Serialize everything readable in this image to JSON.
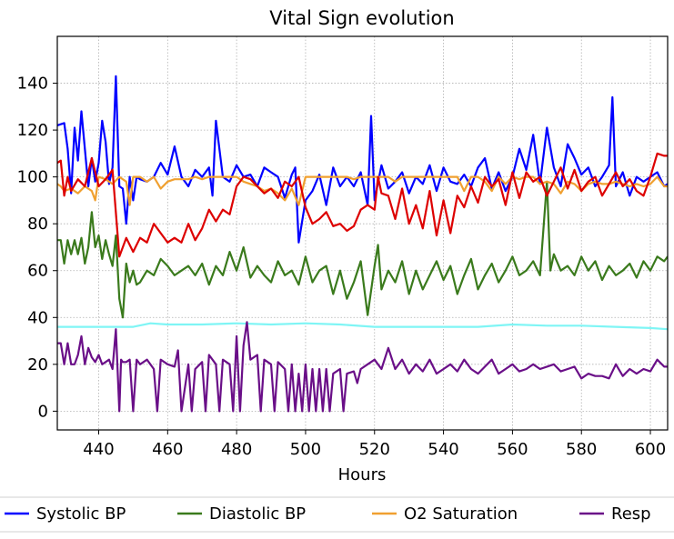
{
  "chart_data": {
    "type": "line",
    "title": "Vital Sign evolution",
    "xlabel": "Hours",
    "ylabel": "",
    "xlim": [
      428,
      605
    ],
    "ylim": [
      -8,
      160
    ],
    "xticks": [
      440,
      460,
      480,
      500,
      520,
      540,
      560,
      580,
      600
    ],
    "yticks": [
      0,
      20,
      40,
      60,
      80,
      100,
      120,
      140
    ],
    "grid": true,
    "legend": {
      "position": "bottom",
      "visible_entries": [
        "Systolic BP",
        "Diastolic BP",
        "O2 Saturation",
        "Resp"
      ]
    },
    "series": [
      {
        "name": "Systolic BP",
        "color": "#0000ff",
        "x": [
          428,
          430,
          431,
          432,
          433,
          434,
          435,
          436,
          437,
          438,
          439,
          440,
          441,
          442,
          443,
          444,
          445,
          446,
          447,
          448,
          449,
          450,
          451,
          452,
          454,
          456,
          458,
          460,
          462,
          464,
          466,
          468,
          470,
          472,
          473,
          474,
          476,
          478,
          480,
          482,
          484,
          486,
          488,
          490,
          492,
          494,
          496,
          497,
          498,
          500,
          502,
          504,
          506,
          508,
          510,
          512,
          514,
          516,
          518,
          519,
          520,
          522,
          524,
          526,
          528,
          530,
          532,
          534,
          536,
          538,
          540,
          542,
          544,
          546,
          548,
          550,
          552,
          554,
          556,
          558,
          560,
          562,
          564,
          566,
          568,
          570,
          572,
          574,
          576,
          578,
          580,
          582,
          584,
          586,
          588,
          589,
          590,
          592,
          594,
          596,
          598,
          600,
          602,
          604,
          605
        ],
        "y": [
          122,
          123,
          112,
          93,
          121,
          107,
          128,
          112,
          96,
          108,
          98,
          106,
          124,
          115,
          97,
          104,
          143,
          96,
          95,
          80,
          100,
          90,
          100,
          99,
          98,
          100,
          106,
          101,
          113,
          100,
          96,
          103,
          100,
          104,
          92,
          124,
          100,
          98,
          105,
          100,
          101,
          96,
          104,
          102,
          100,
          91,
          101,
          104,
          72,
          90,
          94,
          101,
          88,
          104,
          96,
          100,
          96,
          102,
          88,
          126,
          90,
          105,
          95,
          98,
          102,
          93,
          100,
          97,
          105,
          94,
          104,
          98,
          97,
          101,
          96,
          104,
          108,
          95,
          102,
          94,
          100,
          112,
          103,
          118,
          97,
          121,
          104,
          96,
          114,
          108,
          101,
          104,
          96,
          100,
          105,
          134,
          96,
          102,
          92,
          100,
          98,
          100,
          102,
          96,
          97
        ]
      },
      {
        "name": "Diastolic BP",
        "color": "#3a7a1c",
        "x": [
          428,
          429,
          430,
          431,
          432,
          433,
          434,
          435,
          436,
          437,
          438,
          439,
          440,
          441,
          442,
          443,
          444,
          445,
          446,
          447,
          448,
          449,
          450,
          451,
          452,
          454,
          456,
          458,
          460,
          462,
          464,
          466,
          468,
          470,
          472,
          474,
          476,
          478,
          480,
          482,
          484,
          486,
          488,
          490,
          492,
          494,
          496,
          498,
          500,
          502,
          504,
          506,
          508,
          510,
          512,
          514,
          516,
          518,
          520,
          521,
          522,
          524,
          526,
          528,
          530,
          532,
          534,
          536,
          538,
          540,
          542,
          544,
          546,
          548,
          550,
          552,
          554,
          556,
          558,
          560,
          562,
          564,
          566,
          568,
          570,
          571,
          572,
          574,
          576,
          578,
          580,
          582,
          584,
          586,
          588,
          590,
          592,
          594,
          596,
          598,
          600,
          602,
          604,
          605
        ],
        "y": [
          73,
          73,
          63,
          73,
          67,
          73,
          67,
          74,
          63,
          70,
          85,
          70,
          75,
          65,
          73,
          67,
          62,
          75,
          48,
          40,
          63,
          55,
          60,
          54,
          55,
          60,
          58,
          65,
          62,
          58,
          60,
          62,
          58,
          63,
          54,
          62,
          58,
          68,
          60,
          70,
          57,
          62,
          58,
          55,
          64,
          58,
          60,
          54,
          66,
          55,
          60,
          62,
          50,
          60,
          48,
          55,
          64,
          41,
          62,
          71,
          52,
          60,
          55,
          64,
          50,
          60,
          52,
          58,
          64,
          56,
          62,
          50,
          58,
          65,
          52,
          58,
          63,
          55,
          60,
          66,
          58,
          60,
          64,
          58,
          98,
          60,
          67,
          60,
          62,
          58,
          66,
          60,
          64,
          56,
          62,
          58,
          60,
          63,
          57,
          64,
          60,
          66,
          64,
          66
        ]
      },
      {
        "name": "O2 Saturation",
        "color": "#f0a030",
        "x": [
          428,
          429,
          430,
          432,
          434,
          436,
          438,
          439,
          440,
          442,
          444,
          446,
          448,
          449,
          450,
          452,
          454,
          456,
          458,
          460,
          462,
          464,
          466,
          468,
          470,
          472,
          474,
          476,
          478,
          480,
          482,
          484,
          486,
          488,
          490,
          492,
          494,
          496,
          498,
          500,
          502,
          504,
          506,
          508,
          510,
          512,
          514,
          516,
          518,
          520,
          522,
          524,
          526,
          528,
          530,
          532,
          534,
          536,
          538,
          540,
          542,
          544,
          546,
          548,
          550,
          552,
          554,
          556,
          558,
          560,
          562,
          564,
          566,
          568,
          570,
          572,
          574,
          576,
          578,
          580,
          582,
          584,
          586,
          588,
          590,
          592,
          594,
          596,
          598,
          600,
          602,
          604,
          605
        ],
        "y": [
          97,
          96,
          94,
          95,
          93,
          96,
          94,
          90,
          100,
          99,
          97,
          100,
          98,
          88,
          100,
          100,
          98,
          100,
          95,
          98,
          99,
          99,
          99,
          100,
          99,
          100,
          100,
          100,
          100,
          100,
          98,
          97,
          96,
          94,
          95,
          93,
          90,
          95,
          88,
          100,
          100,
          100,
          100,
          100,
          100,
          100,
          99,
          100,
          100,
          100,
          100,
          100,
          98,
          100,
          100,
          100,
          100,
          100,
          100,
          100,
          100,
          100,
          94,
          100,
          100,
          98,
          94,
          100,
          97,
          100,
          99,
          100,
          100,
          97,
          98,
          97,
          93,
          98,
          97,
          94,
          97,
          98,
          97,
          97,
          98,
          97,
          96,
          97,
          96,
          97,
          100,
          96,
          96
        ]
      },
      {
        "name": "",
        "color": "#dd0000",
        "x": [
          428,
          429,
          430,
          431,
          432,
          434,
          436,
          438,
          440,
          442,
          444,
          446,
          448,
          450,
          452,
          454,
          456,
          458,
          460,
          462,
          464,
          466,
          468,
          470,
          472,
          474,
          476,
          478,
          480,
          482,
          484,
          486,
          488,
          490,
          492,
          494,
          496,
          498,
          500,
          502,
          504,
          506,
          508,
          510,
          512,
          514,
          516,
          518,
          520,
          521,
          522,
          524,
          526,
          528,
          530,
          532,
          534,
          536,
          538,
          540,
          542,
          544,
          546,
          548,
          550,
          552,
          554,
          556,
          558,
          560,
          562,
          564,
          566,
          568,
          570,
          572,
          574,
          576,
          578,
          580,
          582,
          584,
          586,
          588,
          590,
          592,
          594,
          596,
          598,
          600,
          602,
          604,
          605
        ],
        "y": [
          106,
          107,
          92,
          100,
          94,
          99,
          96,
          108,
          96,
          99,
          103,
          66,
          74,
          68,
          74,
          72,
          80,
          76,
          72,
          74,
          72,
          80,
          73,
          78,
          86,
          81,
          86,
          84,
          96,
          100,
          99,
          96,
          93,
          95,
          91,
          98,
          96,
          100,
          87,
          80,
          82,
          85,
          79,
          80,
          77,
          79,
          86,
          88,
          86,
          100,
          93,
          92,
          82,
          95,
          80,
          88,
          78,
          94,
          75,
          90,
          76,
          92,
          87,
          96,
          89,
          100,
          96,
          99,
          88,
          102,
          91,
          102,
          98,
          100,
          92,
          98,
          104,
          95,
          103,
          94,
          98,
          100,
          92,
          97,
          102,
          96,
          99,
          94,
          92,
          100,
          110,
          109,
          109
        ]
      },
      {
        "name": "",
        "color": "#7ff5f5",
        "x": [
          428,
          440,
          450,
          455,
          460,
          470,
          480,
          490,
          500,
          510,
          520,
          530,
          540,
          550,
          560,
          570,
          580,
          590,
          600,
          605
        ],
        "y": [
          36,
          36,
          36,
          37.5,
          37,
          37,
          37.5,
          37,
          37.5,
          37,
          36,
          36,
          36,
          36,
          37,
          36.5,
          36.5,
          36,
          35.5,
          35
        ]
      },
      {
        "name": "Resp",
        "color": "#6a0f88",
        "x": [
          428,
          429,
          430,
          431,
          432,
          433,
          434,
          435,
          436,
          437,
          438,
          439,
          440,
          441,
          442,
          443,
          444,
          445,
          446,
          446.5,
          447,
          448,
          449,
          450,
          451,
          452,
          454,
          456,
          457,
          458,
          460,
          462,
          463,
          464,
          466,
          467,
          468,
          470,
          471,
          472,
          474,
          475,
          476,
          478,
          479,
          480,
          481,
          482,
          483,
          484,
          486,
          487,
          488,
          490,
          491,
          492,
          494,
          495,
          496,
          497,
          498,
          499,
          500,
          501,
          502,
          503,
          504,
          505,
          506,
          507,
          508,
          510,
          511,
          512,
          514,
          515,
          516,
          518,
          520,
          522,
          524,
          526,
          528,
          530,
          532,
          534,
          536,
          538,
          540,
          542,
          544,
          546,
          548,
          550,
          552,
          554,
          556,
          558,
          560,
          562,
          564,
          566,
          568,
          570,
          572,
          574,
          576,
          578,
          580,
          582,
          584,
          586,
          588,
          590,
          592,
          594,
          596,
          598,
          600,
          602,
          604,
          605
        ],
        "y": [
          29,
          29,
          20,
          29,
          20,
          20,
          24,
          32,
          20,
          27,
          23,
          21,
          24,
          20,
          21,
          22,
          18,
          35,
          0,
          22,
          21,
          21,
          22,
          0,
          22,
          20,
          22,
          18,
          0,
          22,
          20,
          19,
          26,
          0,
          20,
          0,
          18,
          21,
          0,
          24,
          20,
          0,
          22,
          20,
          0,
          32,
          0,
          28,
          38,
          22,
          24,
          0,
          22,
          20,
          0,
          21,
          18,
          0,
          20,
          0,
          16,
          0,
          20,
          0,
          18,
          0,
          18,
          0,
          18,
          0,
          16,
          18,
          0,
          16,
          17,
          12,
          18,
          20,
          22,
          18,
          27,
          18,
          22,
          16,
          20,
          17,
          22,
          16,
          18,
          20,
          17,
          22,
          18,
          16,
          19,
          22,
          16,
          18,
          20,
          17,
          18,
          20,
          18,
          19,
          20,
          17,
          18,
          19,
          14,
          16,
          15,
          15,
          14,
          20,
          15,
          18,
          16,
          18,
          17,
          22,
          19,
          19
        ]
      }
    ]
  }
}
